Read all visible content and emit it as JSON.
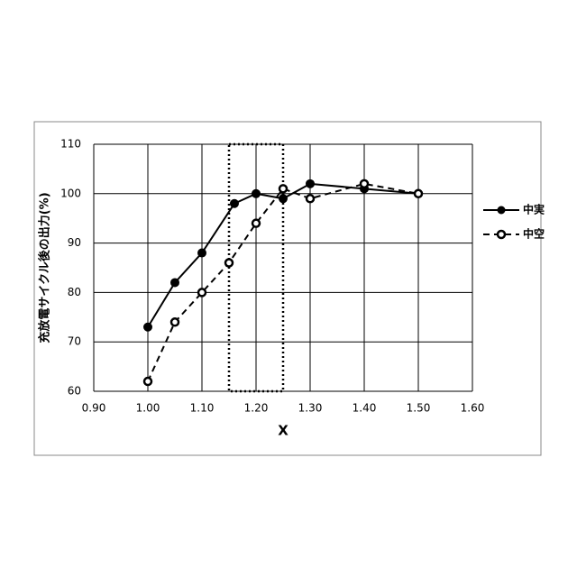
{
  "chart_data": {
    "type": "line",
    "xlabel": "X",
    "ylabel": "充放電サイクル後の出力(%)",
    "xlim": [
      0.9,
      1.6
    ],
    "xticks": [
      {
        "value": 0.9,
        "label": "0.90"
      },
      {
        "value": 1.0,
        "label": "1.00"
      },
      {
        "value": 1.1,
        "label": "1.10"
      },
      {
        "value": 1.2,
        "label": "1.20"
      },
      {
        "value": 1.3,
        "label": "1.30"
      },
      {
        "value": 1.4,
        "label": "1.40"
      },
      {
        "value": 1.5,
        "label": "1.50"
      },
      {
        "value": 1.6,
        "label": "1.60"
      }
    ],
    "ylim": [
      60,
      110
    ],
    "yticks": [
      60,
      70,
      80,
      90,
      100,
      110
    ],
    "grid": true,
    "legend": "right",
    "series": [
      {
        "name": "中実",
        "color": "#000000",
        "linestyle": "solid",
        "marker": "filled",
        "x": [
          1.0,
          1.05,
          1.1,
          1.16,
          1.2,
          1.25,
          1.3,
          1.4,
          1.5
        ],
        "values": [
          73,
          82,
          88,
          98,
          100,
          99,
          102,
          101,
          100
        ]
      },
      {
        "name": "中空",
        "color": "#000000",
        "linestyle": "dashed",
        "marker": "hollow",
        "x": [
          1.0,
          1.05,
          1.1,
          1.15,
          1.2,
          1.25,
          1.3,
          1.4,
          1.5
        ],
        "values": [
          62,
          74,
          80,
          86,
          94,
          101,
          99,
          102,
          100
        ]
      }
    ]
  }
}
